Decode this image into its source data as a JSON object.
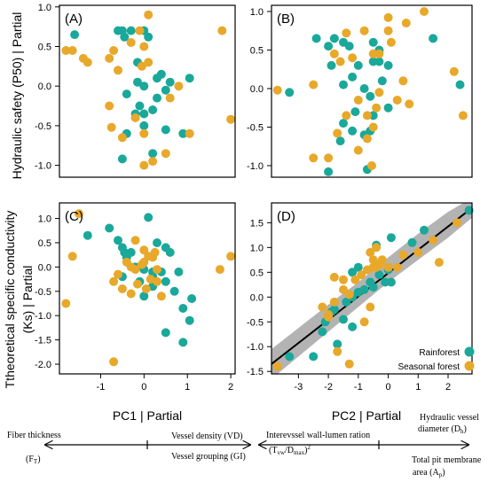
{
  "figure": {
    "ylabel_top": "Hydraulic safety (P50) | Partial",
    "ylabel_bottom_line1": "Ttheoretical specific conductivity",
    "ylabel_bottom_line2": "(Ks) | Partial",
    "xlabel_left": "PC1 | Partial",
    "xlabel_right": "PC2 | Partial",
    "colors": {
      "rainforest": "#1aa89a",
      "seasonal": "#e8a82a",
      "fit_line": "#000000",
      "ci_band": "#a6a6a6"
    }
  },
  "legend": {
    "rainforest": "Rainforest",
    "seasonal": "Seasonal forest"
  },
  "arrows": {
    "pc1_left_line1": "Fiber thickness",
    "pc1_left_line2": "(F",
    "pc1_left_sub": "T",
    "pc1_left_end": ")",
    "pc1_right_top": "Vessel density (VD)",
    "pc1_right_bottom": "Vessel grouping (GI)",
    "pc2_left_line1": "Interevssel wall-lumen ration",
    "pc2_left_line2a": "(T",
    "pc2_left_sub1": "vw",
    "pc2_left_line2b": "/D",
    "pc2_left_sub2": "max",
    "pc2_left_line2c": ")",
    "pc2_left_sup": "2",
    "pc2_right_top1": "Hydraulic vessel",
    "pc2_right_top2a": "diameter (D",
    "pc2_right_top2sub": "h",
    "pc2_right_top2b": ")",
    "pc2_right_bot1": "Total pit membrane",
    "pc2_right_bot2a": "area (A",
    "pc2_right_bot2sub": "p",
    "pc2_right_bot2b": ")"
  },
  "chart_data": [
    {
      "type": "scatter",
      "panel_label": "(A)",
      "xlim": [
        -1.95,
        2.1
      ],
      "ylim": [
        -1.15,
        1.02
      ],
      "xticks": [],
      "yticks": [
        -1.0,
        -0.5,
        0.0,
        0.5,
        1.0
      ],
      "series": [
        {
          "name": "Rainforest",
          "points": [
            [
              -1.6,
              0.65
            ],
            [
              -0.6,
              0.7
            ],
            [
              -0.5,
              0.7
            ],
            [
              -0.45,
              0.62
            ],
            [
              -0.3,
              0.7
            ],
            [
              0.0,
              0.7
            ],
            [
              0.1,
              0.62
            ],
            [
              -0.15,
              0.3
            ],
            [
              0.3,
              0.1
            ],
            [
              0.4,
              0.15
            ],
            [
              -0.15,
              0.05
            ],
            [
              0.6,
              0.05
            ],
            [
              0.0,
              0.0
            ],
            [
              0.5,
              -0.05
            ],
            [
              -0.4,
              -0.1
            ],
            [
              1.05,
              0.1
            ],
            [
              0.3,
              -0.15
            ],
            [
              -0.1,
              -0.25
            ],
            [
              -0.2,
              -0.35
            ],
            [
              0.2,
              -0.3
            ],
            [
              -0.4,
              -0.6
            ],
            [
              0.0,
              -0.5
            ],
            [
              0.5,
              -0.55
            ],
            [
              0.9,
              -0.6
            ],
            [
              0.0,
              -0.35
            ],
            [
              -0.5,
              -0.92
            ],
            [
              0.2,
              -0.85
            ]
          ]
        },
        {
          "name": "Seasonal forest",
          "points": [
            [
              -1.8,
              0.45
            ],
            [
              -1.65,
              0.45
            ],
            [
              -1.4,
              0.35
            ],
            [
              -1.3,
              0.3
            ],
            [
              -0.8,
              0.35
            ],
            [
              -0.7,
              0.45
            ],
            [
              -0.1,
              0.7
            ],
            [
              0.1,
              0.9
            ],
            [
              -0.3,
              0.55
            ],
            [
              0.0,
              0.5
            ],
            [
              0.1,
              0.3
            ],
            [
              -0.05,
              0.25
            ],
            [
              -0.6,
              0.2
            ],
            [
              1.8,
              0.7
            ],
            [
              2.0,
              -0.42
            ],
            [
              -0.8,
              -0.25
            ],
            [
              -0.2,
              -0.4
            ],
            [
              0.0,
              -0.6
            ],
            [
              -0.75,
              -0.52
            ],
            [
              0.6,
              -0.15
            ],
            [
              0.8,
              0.0
            ],
            [
              1.05,
              -0.6
            ],
            [
              0.2,
              -0.95
            ],
            [
              0.5,
              -0.85
            ],
            [
              0.0,
              -1.0
            ],
            [
              -0.5,
              -0.65
            ]
          ]
        }
      ]
    },
    {
      "type": "scatter",
      "panel_label": "(B)",
      "xlim": [
        -3.9,
        2.8
      ],
      "ylim": [
        -1.15,
        1.08
      ],
      "xticks": [],
      "yticks": [
        -1.0,
        -0.5,
        0.0,
        0.5,
        1.0
      ],
      "series": [
        {
          "name": "Rainforest",
          "points": [
            [
              -3.3,
              -0.05
            ],
            [
              -2.4,
              0.65
            ],
            [
              -1.8,
              0.65
            ],
            [
              -2.0,
              0.55
            ],
            [
              -1.5,
              0.6
            ],
            [
              -1.3,
              0.55
            ],
            [
              -0.5,
              0.6
            ],
            [
              -0.3,
              0.5
            ],
            [
              1.5,
              0.65
            ],
            [
              2.4,
              0.05
            ],
            [
              -1.9,
              0.3
            ],
            [
              -1.0,
              0.3
            ],
            [
              -0.5,
              0.35
            ],
            [
              -0.3,
              0.35
            ],
            [
              0.0,
              0.3
            ],
            [
              -1.5,
              0.05
            ],
            [
              -1.2,
              0.15
            ],
            [
              -0.8,
              0.0
            ],
            [
              -0.6,
              -0.1
            ],
            [
              -0.2,
              0.1
            ],
            [
              -1.1,
              -0.3
            ],
            [
              -0.5,
              -0.35
            ],
            [
              0.0,
              -0.25
            ],
            [
              -1.5,
              -0.45
            ],
            [
              -1.2,
              -0.55
            ],
            [
              -0.6,
              -0.55
            ],
            [
              -1.6,
              -0.68
            ],
            [
              -0.8,
              -0.6
            ],
            [
              -2.0,
              -1.08
            ],
            [
              -0.7,
              -1.05
            ]
          ]
        },
        {
          "name": "Seasonal forest",
          "points": [
            [
              -3.7,
              -0.02
            ],
            [
              -1.4,
              0.72
            ],
            [
              -0.8,
              0.75
            ],
            [
              0.0,
              0.75
            ],
            [
              0.1,
              0.6
            ],
            [
              -0.5,
              0.45
            ],
            [
              -1.8,
              0.45
            ],
            [
              -1.6,
              0.35
            ],
            [
              -1.2,
              0.4
            ],
            [
              -0.3,
              0.45
            ],
            [
              0.0,
              0.92
            ],
            [
              0.6,
              0.85
            ],
            [
              1.2,
              1.0
            ],
            [
              2.2,
              0.22
            ],
            [
              2.5,
              -0.35
            ],
            [
              -2.5,
              0.05
            ],
            [
              -1.0,
              -0.15
            ],
            [
              -0.3,
              -0.05
            ],
            [
              0.5,
              0.1
            ],
            [
              0.7,
              -0.2
            ],
            [
              -1.4,
              -0.35
            ],
            [
              -0.7,
              -0.35
            ],
            [
              0.3,
              -0.15
            ],
            [
              -2.0,
              -0.9
            ],
            [
              -2.5,
              -0.9
            ],
            [
              -1.0,
              -0.8
            ],
            [
              -0.5,
              -0.5
            ],
            [
              -0.4,
              -0.25
            ],
            [
              -1.7,
              -0.58
            ],
            [
              -0.7,
              -0.65
            ],
            [
              -0.55,
              -1.0
            ]
          ]
        }
      ]
    },
    {
      "type": "scatter",
      "panel_label": "(C)",
      "xlim": [
        -1.95,
        2.1
      ],
      "ylim": [
        -2.2,
        1.32
      ],
      "xticks": [
        -1,
        0,
        1,
        2
      ],
      "yticks": [
        -2.0,
        -1.5,
        -1.0,
        -0.5,
        0.0,
        0.5,
        1.0
      ],
      "series": [
        {
          "name": "Rainforest",
          "points": [
            [
              -1.3,
              0.65
            ],
            [
              -0.8,
              0.8
            ],
            [
              -0.6,
              0.55
            ],
            [
              -0.5,
              0.4
            ],
            [
              -0.45,
              0.3
            ],
            [
              -0.4,
              0.2
            ],
            [
              -0.3,
              0.3
            ],
            [
              0.1,
              1.02
            ],
            [
              0.3,
              0.5
            ],
            [
              0.5,
              0.4
            ],
            [
              0.6,
              0.3
            ],
            [
              -0.2,
              0.0
            ],
            [
              0.0,
              -0.05
            ],
            [
              0.2,
              -0.1
            ],
            [
              -0.5,
              -0.2
            ],
            [
              0.2,
              -0.2
            ],
            [
              -0.1,
              -0.3
            ],
            [
              0.2,
              -0.4
            ],
            [
              0.5,
              -0.3
            ],
            [
              0.4,
              -0.1
            ],
            [
              0.0,
              -0.6
            ],
            [
              0.8,
              -0.1
            ],
            [
              0.7,
              -0.5
            ],
            [
              1.1,
              -0.65
            ],
            [
              0.9,
              -0.85
            ],
            [
              1.05,
              -1.1
            ],
            [
              0.5,
              -1.35
            ],
            [
              0.9,
              -1.55
            ]
          ]
        },
        {
          "name": "Seasonal forest",
          "points": [
            [
              -1.5,
              1.1
            ],
            [
              -1.65,
              0.22
            ],
            [
              -1.8,
              -0.75
            ],
            [
              -0.7,
              -0.3
            ],
            [
              -0.2,
              0.55
            ],
            [
              0.0,
              0.35
            ],
            [
              0.1,
              0.22
            ],
            [
              0.2,
              0.2
            ],
            [
              -0.05,
              0.05
            ],
            [
              -0.3,
              0.0
            ],
            [
              0.0,
              0.1
            ],
            [
              0.3,
              -0.05
            ],
            [
              0.15,
              -0.25
            ],
            [
              -0.15,
              -0.35
            ],
            [
              0.3,
              -0.3
            ],
            [
              -0.5,
              -0.45
            ],
            [
              -0.3,
              -0.55
            ],
            [
              0.05,
              -0.45
            ],
            [
              0.4,
              -0.6
            ],
            [
              2.0,
              0.22
            ],
            [
              1.75,
              -0.05
            ],
            [
              -0.7,
              -1.95
            ],
            [
              -0.2,
              -0.05
            ],
            [
              -0.6,
              -0.15
            ],
            [
              -0.4,
              0.1
            ],
            [
              0.25,
              0.3
            ]
          ]
        }
      ]
    },
    {
      "type": "scatter",
      "panel_label": "(D)",
      "xlim": [
        -3.9,
        2.8
      ],
      "ylim": [
        -1.55,
        1.9
      ],
      "xticks": [
        -3,
        -2,
        -1,
        0,
        1,
        2
      ],
      "yticks": [
        -1.5,
        -1.0,
        -0.5,
        0.0,
        0.5,
        1.0,
        1.5
      ],
      "fit_line": [
        [
          -3.9,
          -1.35
        ],
        [
          2.8,
          1.8
        ]
      ],
      "ci_band_upper": [
        [
          -3.9,
          -1.05
        ],
        [
          -2.0,
          -0.15
        ],
        [
          -1.0,
          0.3
        ],
        [
          0.0,
          0.8
        ],
        [
          1.0,
          1.28
        ],
        [
          2.0,
          1.72
        ],
        [
          2.8,
          2.0
        ]
      ],
      "ci_band_lower": [
        [
          2.8,
          1.6
        ],
        [
          2.0,
          1.2
        ],
        [
          1.0,
          0.75
        ],
        [
          0.0,
          0.3
        ],
        [
          -1.0,
          -0.2
        ],
        [
          -2.0,
          -0.7
        ],
        [
          -3.9,
          -1.65
        ]
      ],
      "series": [
        {
          "name": "Rainforest",
          "points": [
            [
              -3.3,
              -1.2
            ],
            [
              -2.5,
              -1.2
            ],
            [
              -2.2,
              -0.7
            ],
            [
              -2.1,
              -0.5
            ],
            [
              -1.9,
              -0.3
            ],
            [
              -1.8,
              -0.25
            ],
            [
              -1.5,
              -0.45
            ],
            [
              -1.4,
              -0.1
            ],
            [
              -1.2,
              0.0
            ],
            [
              -1.0,
              0.1
            ],
            [
              -0.8,
              0.15
            ],
            [
              -0.6,
              0.3
            ],
            [
              -0.5,
              0.2
            ],
            [
              -1.2,
              0.5
            ],
            [
              -1.0,
              0.6
            ],
            [
              -0.4,
              1.05
            ],
            [
              -0.1,
              0.3
            ],
            [
              0.1,
              0.3
            ],
            [
              0.0,
              0.55
            ],
            [
              0.1,
              1.2
            ],
            [
              0.8,
              1.1
            ],
            [
              1.2,
              1.35
            ],
            [
              -1.7,
              -0.95
            ],
            [
              -1.2,
              -0.6
            ],
            [
              -0.3,
              0.45
            ],
            [
              2.7,
              1.75
            ]
          ]
        },
        {
          "name": "Seasonal forest",
          "points": [
            [
              -3.7,
              -1.4
            ],
            [
              -2.0,
              -0.4
            ],
            [
              -2.2,
              -0.2
            ],
            [
              -1.8,
              -0.1
            ],
            [
              -1.5,
              0.15
            ],
            [
              -1.3,
              0.05
            ],
            [
              -1.1,
              0.35
            ],
            [
              -0.9,
              0.45
            ],
            [
              -0.7,
              0.55
            ],
            [
              -0.5,
              0.6
            ],
            [
              -0.4,
              0.6
            ],
            [
              -0.3,
              0.65
            ],
            [
              -0.2,
              0.75
            ],
            [
              -0.6,
              0.9
            ],
            [
              -0.4,
              1.0
            ],
            [
              -0.5,
              0.75
            ],
            [
              -1.5,
              0.35
            ],
            [
              -1.8,
              0.4
            ],
            [
              0.3,
              0.6
            ],
            [
              0.5,
              0.85
            ],
            [
              1.0,
              0.9
            ],
            [
              1.5,
              1.15
            ],
            [
              1.7,
              0.7
            ],
            [
              2.3,
              1.5
            ],
            [
              -2.0,
              -0.35
            ],
            [
              -1.7,
              -1.1
            ],
            [
              -1.3,
              -1.35
            ],
            [
              -0.8,
              -0.5
            ],
            [
              -0.6,
              -0.2
            ],
            [
              0.0,
              0.6
            ]
          ]
        }
      ]
    }
  ]
}
